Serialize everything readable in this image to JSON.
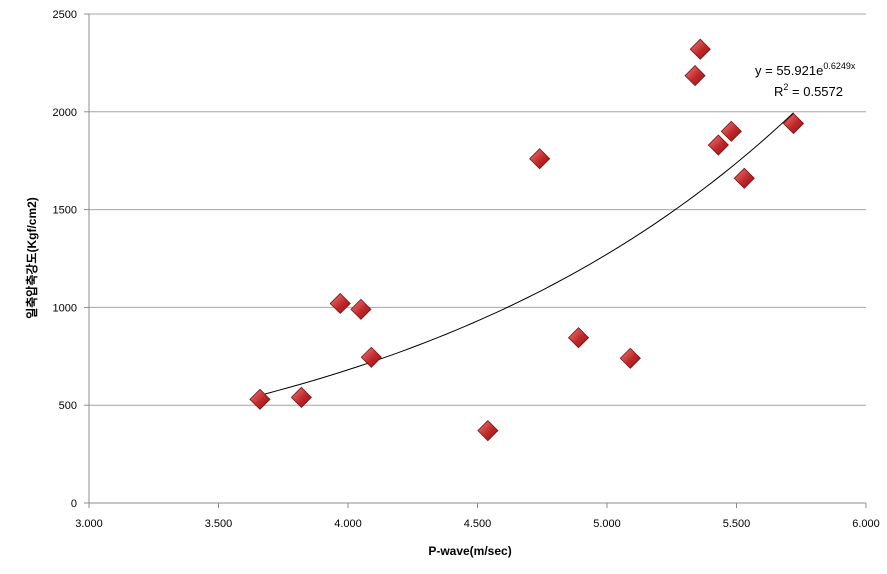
{
  "chart_data": {
    "type": "scatter",
    "xlabel": "P-wave(m/sec)",
    "ylabel": "일축압축강도(Kgf/cm2)",
    "xlim": [
      3.0,
      6.0
    ],
    "ylim": [
      0,
      2500
    ],
    "x_ticks": [
      "3.000",
      "3.500",
      "4.000",
      "4.500",
      "5.000",
      "5.500",
      "6.000"
    ],
    "y_ticks": [
      "0",
      "500",
      "1000",
      "1500",
      "2000",
      "2500"
    ],
    "grid": "horizontal",
    "marker": "diamond",
    "marker_color": "#c0282a",
    "points": [
      {
        "x": 3.66,
        "y": 530
      },
      {
        "x": 3.82,
        "y": 540
      },
      {
        "x": 3.97,
        "y": 1020
      },
      {
        "x": 4.05,
        "y": 990
      },
      {
        "x": 4.09,
        "y": 745
      },
      {
        "x": 4.54,
        "y": 370
      },
      {
        "x": 4.74,
        "y": 1760
      },
      {
        "x": 4.89,
        "y": 845
      },
      {
        "x": 5.09,
        "y": 740
      },
      {
        "x": 5.34,
        "y": 2185
      },
      {
        "x": 5.36,
        "y": 2320
      },
      {
        "x": 5.43,
        "y": 1830
      },
      {
        "x": 5.48,
        "y": 1900
      },
      {
        "x": 5.53,
        "y": 1660
      },
      {
        "x": 5.72,
        "y": 1940
      }
    ],
    "trendline": {
      "type": "exponential",
      "a": 55.921,
      "b": 0.6249,
      "x_range": [
        3.66,
        5.72
      ],
      "equation_prefix": "y = 55.921e",
      "equation_exponent": "0.6249x",
      "r2_prefix": "R",
      "r2_sup": "2",
      "r2_value": " = 0.5572"
    }
  }
}
